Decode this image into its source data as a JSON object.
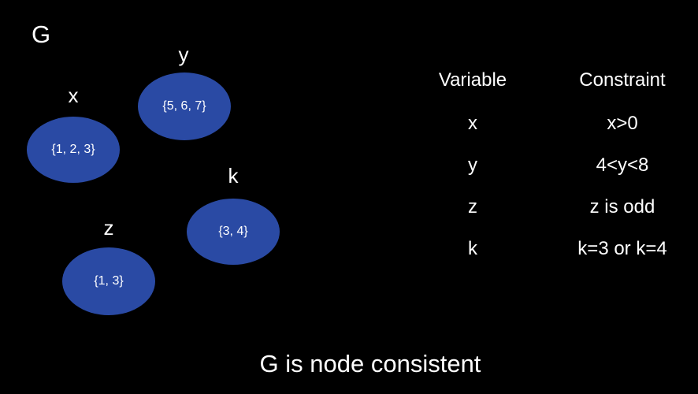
{
  "graph": {
    "name": "G",
    "nodes": [
      {
        "variable": "x",
        "domain": "{1, 2, 3}"
      },
      {
        "variable": "y",
        "domain": "{5, 6, 7}"
      },
      {
        "variable": "k",
        "domain": "{3, 4}"
      },
      {
        "variable": "z",
        "domain": "{1, 3}"
      }
    ]
  },
  "table": {
    "headers": [
      "Variable",
      "Constraint"
    ],
    "rows": [
      {
        "variable": "x",
        "constraint": "x>0"
      },
      {
        "variable": "y",
        "constraint": "4<y<8"
      },
      {
        "variable": "z",
        "constraint": "z is odd"
      },
      {
        "variable": "k",
        "constraint": "k=3 or k=4"
      }
    ]
  },
  "caption": "G is node consistent",
  "colors": {
    "background": "#000000",
    "node_fill": "#2a4aa4",
    "text": "#ffffff"
  }
}
